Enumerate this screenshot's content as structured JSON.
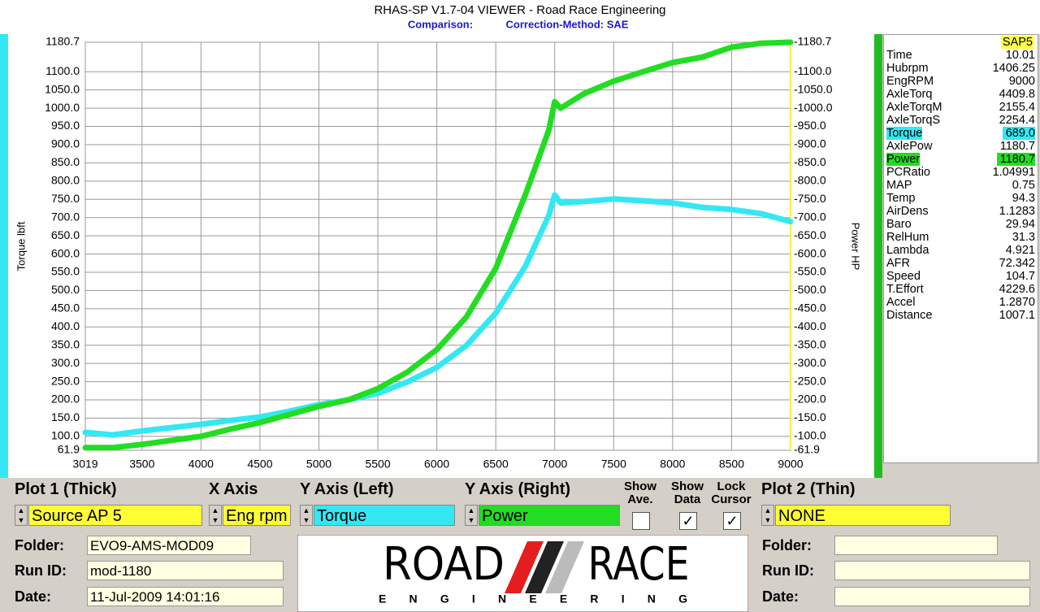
{
  "title": "RHAS-SP V1.7-04  VIEWER - Road Race Engineering",
  "subtitle": {
    "left": "Comparison:",
    "right": "Correction-Method: SAE"
  },
  "chart_data": {
    "type": "line",
    "y_label": "Torque lbft",
    "y2_label": "Power HP",
    "x": [
      3019,
      3250,
      3500,
      3750,
      4000,
      4250,
      4500,
      4750,
      5000,
      5250,
      5500,
      5750,
      6000,
      6250,
      6500,
      6750,
      6950,
      7000,
      7050,
      7250,
      7500,
      7750,
      8000,
      8250,
      8500,
      8750,
      9000
    ],
    "series": [
      {
        "name": "Torque",
        "color": "#33e8f2",
        "values": [
          111,
          104,
          115,
          124,
          133,
          144,
          153,
          169,
          187,
          200,
          218,
          249,
          289,
          349,
          438,
          566,
          706,
          762,
          740,
          744,
          751,
          746,
          740,
          728,
          722,
          711,
          689
        ]
      },
      {
        "name": "Power",
        "color": "#22dd22",
        "axis": "y2",
        "values": [
          69,
          69,
          78,
          89,
          100,
          120,
          138,
          160,
          182,
          200,
          231,
          276,
          338,
          427,
          561,
          762,
          940,
          1018,
          1000,
          1040,
          1074,
          1100,
          1125,
          1140,
          1167,
          1178,
          1180.7
        ]
      }
    ],
    "xlim": [
      3019,
      9000
    ],
    "xticks": [
      3019,
      3500,
      4000,
      4500,
      5000,
      5500,
      6000,
      6500,
      7000,
      7500,
      8000,
      8500,
      9000
    ],
    "ylim": [
      61.9,
      1180.7
    ],
    "yticks": [
      61.9,
      {
        "value": 100,
        "label": "100.0"
      },
      {
        "value": 150,
        "label": "150.0"
      },
      {
        "value": 200,
        "label": "200.0"
      },
      {
        "value": 250,
        "label": "250.0"
      },
      {
        "value": 300,
        "label": "300.0"
      },
      {
        "value": 350,
        "label": "350.0"
      },
      {
        "value": 400,
        "label": "400.0"
      },
      {
        "value": 450,
        "label": "450.0"
      },
      {
        "value": 500,
        "label": "500.0"
      },
      {
        "value": 550,
        "label": "550.0"
      },
      {
        "value": 600,
        "label": "600.0"
      },
      {
        "value": 650,
        "label": "650.0"
      },
      {
        "value": 700,
        "label": "700.0"
      },
      {
        "value": 750,
        "label": "750.0"
      },
      {
        "value": 800,
        "label": "800.0"
      },
      {
        "value": 850,
        "label": "850.0"
      },
      {
        "value": 900,
        "label": "900.0"
      },
      {
        "value": 950,
        "label": "950.0"
      },
      {
        "value": 1000,
        "label": "1000.0"
      },
      {
        "value": 1050,
        "label": "1050.0"
      },
      {
        "value": 1100,
        "label": "1100.0"
      },
      1180.7
    ],
    "y2lim": [
      61.9,
      1180.7
    ],
    "y2ticks": [
      {
        "value": 61.9,
        "label": "-61.9"
      },
      {
        "value": 100,
        "label": "-100.0"
      },
      {
        "value": 150,
        "label": "-150.0"
      },
      {
        "value": 200,
        "label": "-200.0"
      },
      {
        "value": 250,
        "label": "-250.0"
      },
      {
        "value": 300,
        "label": "-300.0"
      },
      {
        "value": 350,
        "label": "-350.0"
      },
      {
        "value": 400,
        "label": "-400.0"
      },
      {
        "value": 450,
        "label": "-450.0"
      },
      {
        "value": 500,
        "label": "-500.0"
      },
      {
        "value": 550,
        "label": "-550.0"
      },
      {
        "value": 600,
        "label": "-600.0"
      },
      {
        "value": 650,
        "label": "-650.0"
      },
      {
        "value": 700,
        "label": "-700.0"
      },
      {
        "value": 750,
        "label": "-750.0"
      },
      {
        "value": 800,
        "label": "-800.0"
      },
      {
        "value": 850,
        "label": "-850.0"
      },
      {
        "value": 900,
        "label": "-900.0"
      },
      {
        "value": 950,
        "label": "-950.0"
      },
      {
        "value": 1000,
        "label": "-1000.0"
      },
      {
        "value": 1050,
        "label": "-1050.0"
      },
      {
        "value": 1100,
        "label": "-1100.0"
      },
      {
        "value": 1180.7,
        "label": "-1180.7"
      }
    ],
    "grid": true
  },
  "readout": {
    "header": "SAP5",
    "rows": [
      {
        "name": "Time",
        "value": "10.01"
      },
      {
        "name": "Hubrpm",
        "value": "1406.25"
      },
      {
        "name": "EngRPM",
        "value": "9000"
      },
      {
        "name": "AxleTorq",
        "value": "4409.8"
      },
      {
        "name": "AxleTorqM",
        "value": "2155.4"
      },
      {
        "name": "AxleTorqS",
        "value": "2254.4"
      },
      {
        "name": "Torque",
        "value": "689.0",
        "color": "#33e8f2"
      },
      {
        "name": "AxlePow",
        "value": "1180.7"
      },
      {
        "name": "Power",
        "value": "1180.7",
        "color": "#22dd22"
      },
      {
        "name": "PCRatio",
        "value": "1.04991"
      },
      {
        "name": "MAP",
        "value": "0.75"
      },
      {
        "name": "Temp",
        "value": "94.3"
      },
      {
        "name": "AirDens",
        "value": "1.1283"
      },
      {
        "name": "Baro",
        "value": "29.94"
      },
      {
        "name": "RelHum",
        "value": "31.3"
      },
      {
        "name": "Lambda",
        "value": "4.921"
      },
      {
        "name": "AFR",
        "value": "72.342"
      },
      {
        "name": "Speed",
        "value": "104.7"
      },
      {
        "name": "T.Effort",
        "value": "4229.6"
      },
      {
        "name": "Accel",
        "value": "1.2870"
      },
      {
        "name": "Distance",
        "value": "1007.1"
      }
    ]
  },
  "controls": {
    "plot1": {
      "label": "Plot 1 (Thick)",
      "value": "Source AP 5"
    },
    "x_axis": {
      "label": "X Axis",
      "value": "Eng rpm"
    },
    "y_left": {
      "label": "Y Axis (Left)",
      "value": "Torque"
    },
    "y_right": {
      "label": "Y Axis (Right)",
      "value": "Power"
    },
    "show_ave": {
      "line1": "Show",
      "line2": "Ave."
    },
    "show_data": {
      "line1": "Show",
      "line2": "Data"
    },
    "lock_cursor": {
      "line1": "Lock",
      "line2": "Cursor"
    },
    "plot2": {
      "label": "Plot 2 (Thin)",
      "value": "NONE"
    }
  },
  "run1": {
    "folder_label": "Folder:",
    "folder": "EVO9-AMS-MOD09",
    "run_label": "Run ID:",
    "run": "mod-1180",
    "date_label": "Date:",
    "date": "11-Jul-2009  14:01:16"
  },
  "run2": {
    "folder_label": "Folder:",
    "run_label": "Run ID:",
    "date_label": "Date:"
  },
  "logo": {
    "left": "ROAD",
    "right": "RACE",
    "sub": "E N G I N E E R I N G"
  }
}
